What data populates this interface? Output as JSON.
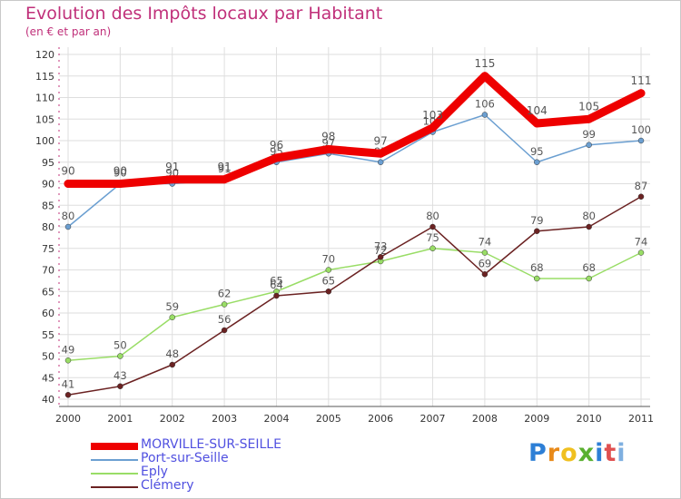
{
  "chart_data": {
    "type": "line",
    "title": "Evolution des Impôts locaux par Habitant",
    "subtitle": "(en € et par an)",
    "x": [
      "2000",
      "2001",
      "2002",
      "2003",
      "2004",
      "2005",
      "2006",
      "2007",
      "2008",
      "2009",
      "2010",
      "2011"
    ],
    "ylim": [
      40,
      120
    ],
    "yticks": [
      "40",
      "45",
      "50",
      "55",
      "60",
      "65",
      "70",
      "75",
      "80",
      "85",
      "90",
      "95",
      "100",
      "105",
      "110",
      "115",
      "120"
    ],
    "xlabel": "",
    "ylabel": "",
    "grid": true,
    "legend_position": "bottom-left",
    "series": [
      {
        "name": "Port-sur-Seille",
        "color": "#6b9fd1",
        "values": [
          80,
          90,
          90,
          91,
          95,
          97,
          95,
          102,
          106,
          95,
          99,
          100
        ],
        "labels": [
          "80",
          "90",
          "90",
          "91",
          "95",
          "97",
          "95",
          "102",
          "106",
          "95",
          "99",
          "100"
        ]
      },
      {
        "name": "Eply",
        "color": "#99dd66",
        "values": [
          49,
          50,
          59,
          62,
          65,
          70,
          72,
          75,
          74,
          68,
          68,
          74
        ],
        "labels": [
          "49",
          "50",
          "59",
          "62",
          "65",
          "70",
          "72",
          "75",
          "74",
          "68",
          "68",
          "74"
        ]
      },
      {
        "name": "Clémery",
        "color": "#6b2222",
        "values": [
          41,
          43,
          48,
          56,
          64,
          65,
          73,
          80,
          69,
          79,
          80,
          87
        ],
        "labels": [
          "41",
          "43",
          "48",
          "56",
          "64",
          "65",
          "73",
          "80",
          "69",
          "79",
          "80",
          "87"
        ]
      },
      {
        "name": "MORVILLE-SUR-SEILLE",
        "color": "#ee0000",
        "values": [
          90,
          90,
          91,
          91,
          96,
          98,
          97,
          103,
          115,
          104,
          105,
          111
        ],
        "labels": [
          "90",
          "90",
          "91",
          "91",
          "96",
          "98",
          "97",
          "103",
          "115",
          "104",
          "105",
          "111"
        ]
      }
    ]
  },
  "legend": [
    {
      "name": "MORVILLE-SUR-SEILLE",
      "color": "#ee0000"
    },
    {
      "name": "Port-sur-Seille",
      "color": "#6b9fd1"
    },
    {
      "name": "Eply",
      "color": "#99dd66"
    },
    {
      "name": "Clémery",
      "color": "#6b2222"
    }
  ],
  "logo": {
    "letters": [
      "P",
      "r",
      "o",
      "x",
      "i",
      "t",
      "i"
    ],
    "colors": [
      "#2d7fd6",
      "#e88a1a",
      "#f0c020",
      "#5ab030",
      "#2d7fd6",
      "#e05050",
      "#7fb0e0"
    ]
  }
}
